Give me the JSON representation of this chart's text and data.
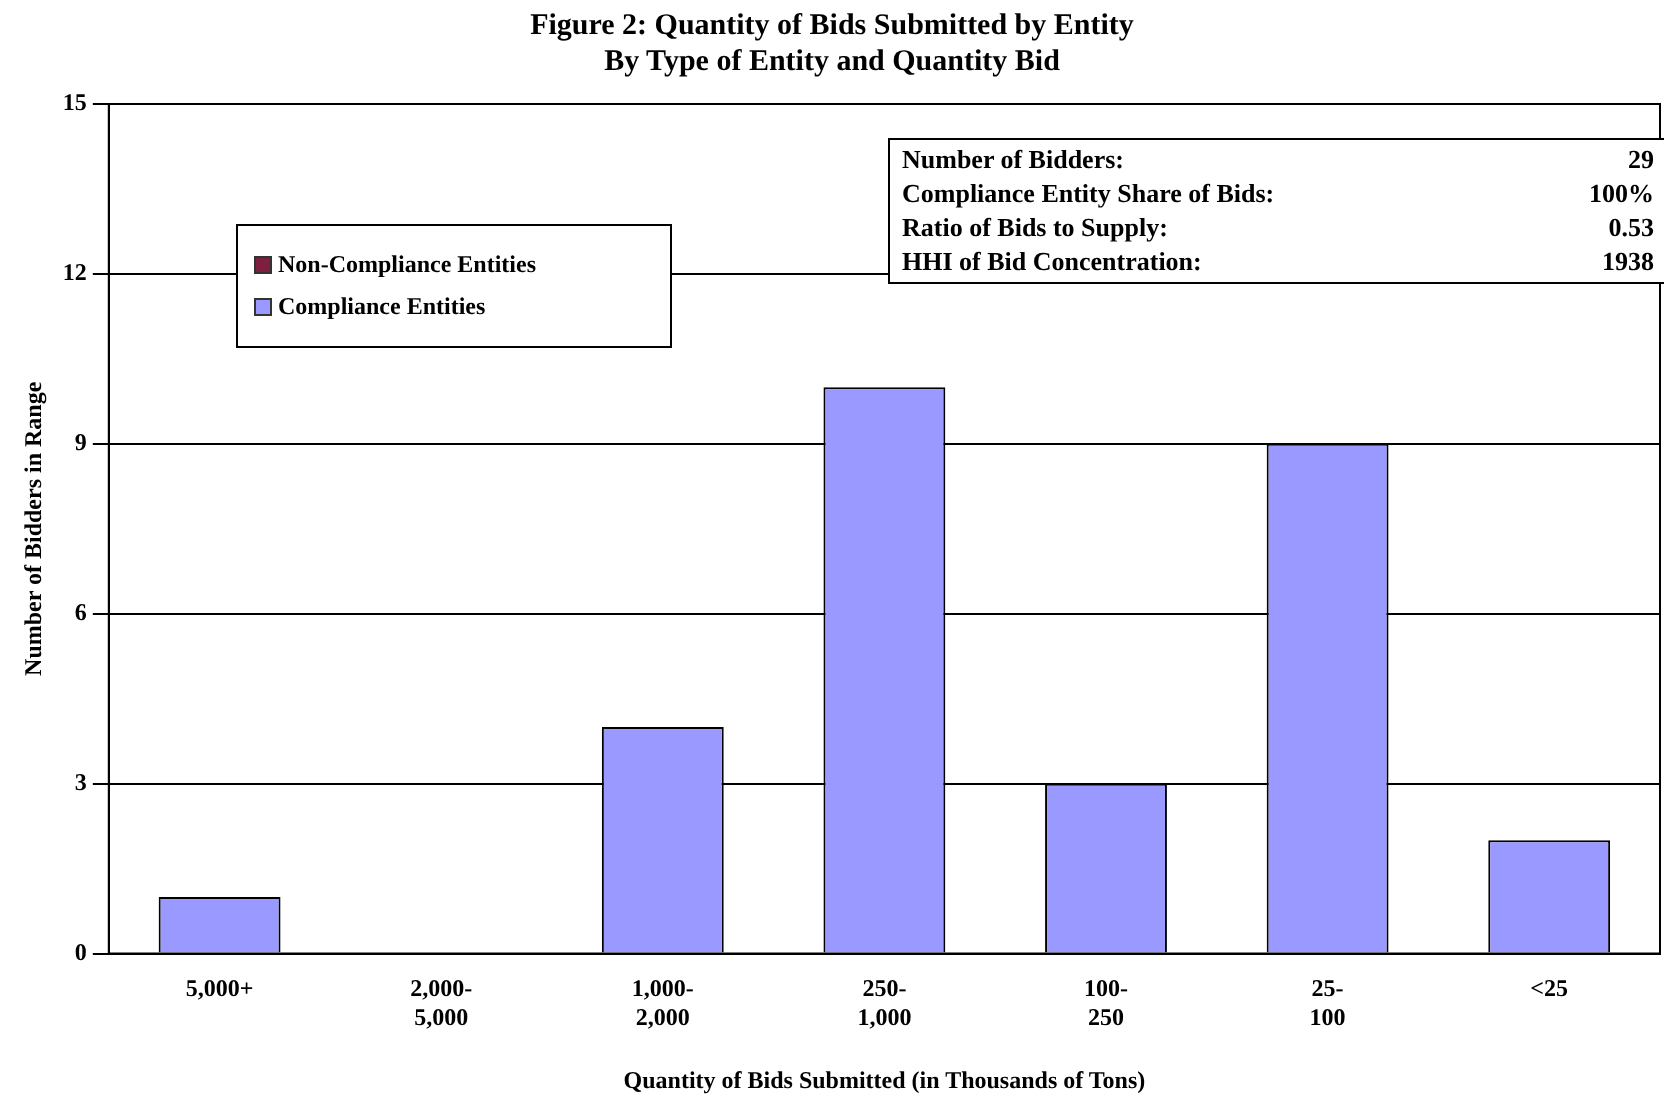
{
  "chart_data": {
    "type": "bar",
    "title": "Figure 2: Quantity of Bids Submitted by Entity",
    "subtitle": "By Type of Entity and Quantity Bid",
    "xlabel": "Quantity of Bids Submitted (in Thousands of Tons)",
    "ylabel": "Number of Bidders in Range",
    "categories": [
      "5,000+",
      "2,000-5,000",
      "1,000-2,000",
      "250-1,000",
      "100-250",
      "25-100",
      "<25"
    ],
    "series": [
      {
        "name": "Non-Compliance Entities",
        "color": "#7f1f3f",
        "values": [
          0,
          0,
          0,
          0,
          0,
          0,
          0
        ]
      },
      {
        "name": "Compliance Entities",
        "color": "#9999ff",
        "values": [
          1,
          0,
          4,
          10,
          3,
          9,
          2
        ]
      }
    ],
    "stacked": true,
    "ylim": [
      0,
      15
    ],
    "yticks": [
      0,
      3,
      6,
      9,
      12,
      15
    ],
    "grid": "y",
    "legend": "top left",
    "annotations": [
      "Number of Bidders:",
      "29",
      "Compliance Entity Share of Bids:",
      "100%",
      "Ratio of Bids to Supply:",
      "0.53",
      "HHI of Bid Concentration:",
      "1938"
    ]
  }
}
